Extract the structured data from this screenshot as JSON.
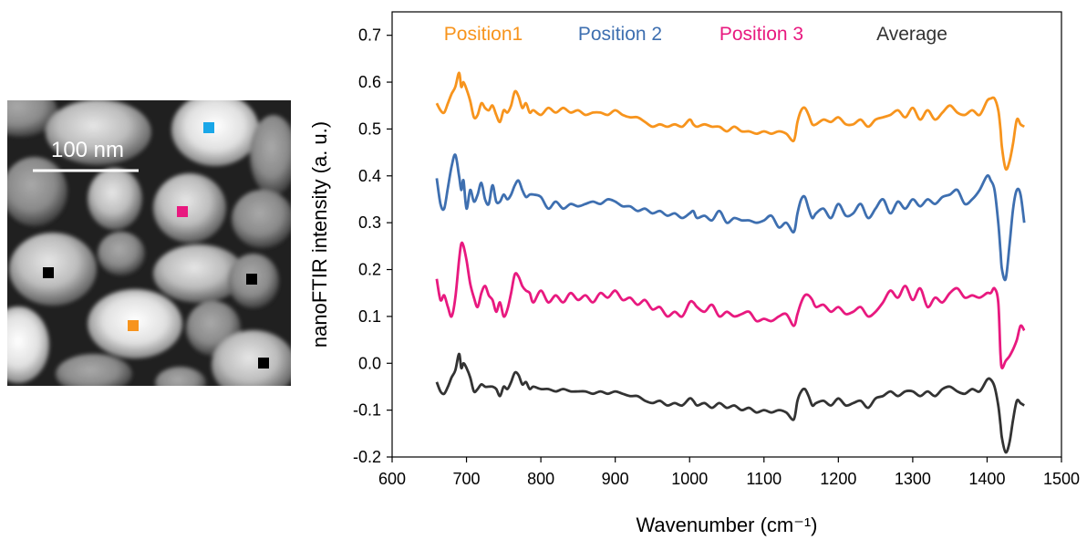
{
  "afm_image": {
    "scale_bar_label": "100 nm",
    "markers": [
      {
        "name": "marker-position-2",
        "color": "#1aa7e8"
      },
      {
        "name": "marker-position-3",
        "color": "#e8197f"
      },
      {
        "name": "marker-position-1",
        "color": "#f7941d"
      },
      {
        "name": "marker-average-1",
        "color": "#000000"
      },
      {
        "name": "marker-average-2",
        "color": "#000000"
      },
      {
        "name": "marker-average-3",
        "color": "#000000"
      }
    ]
  },
  "chart_data": {
    "type": "line",
    "xlabel": "Wavenumber (cm⁻¹)",
    "ylabel": "nanoFTIR intensity (a. u.)",
    "xlim": [
      600,
      1500
    ],
    "ylim": [
      -0.2,
      0.75
    ],
    "xticks": [
      600,
      700,
      800,
      900,
      1000,
      1100,
      1200,
      1300,
      1400,
      1500
    ],
    "xtick_labels": [
      "600",
      "700",
      "800",
      "900",
      "1000",
      "1100",
      "1200",
      "1300",
      "1400",
      "1500"
    ],
    "yticks": [
      -0.2,
      -0.1,
      0.0,
      0.1,
      0.2,
      0.3,
      0.4,
      0.5,
      0.6,
      0.7
    ],
    "ytick_labels": [
      "-0.2",
      "-0.1",
      "0.0",
      "0.1",
      "0.2",
      "0.3",
      "0.4",
      "0.5",
      "0.6",
      "0.7"
    ],
    "grid": false,
    "legend": "top inline",
    "x": [
      660,
      665,
      670,
      675,
      680,
      685,
      690,
      693,
      696,
      700,
      705,
      710,
      715,
      720,
      725,
      730,
      735,
      740,
      745,
      750,
      755,
      760,
      765,
      770,
      775,
      780,
      785,
      790,
      800,
      810,
      820,
      830,
      840,
      850,
      860,
      870,
      880,
      890,
      900,
      910,
      920,
      930,
      940,
      950,
      960,
      970,
      980,
      990,
      1000,
      1005,
      1010,
      1020,
      1030,
      1040,
      1050,
      1060,
      1070,
      1080,
      1090,
      1100,
      1110,
      1120,
      1130,
      1140,
      1145,
      1150,
      1155,
      1160,
      1165,
      1170,
      1180,
      1190,
      1200,
      1210,
      1220,
      1230,
      1240,
      1250,
      1260,
      1270,
      1280,
      1290,
      1300,
      1310,
      1320,
      1330,
      1340,
      1350,
      1360,
      1370,
      1380,
      1390,
      1400,
      1405,
      1410,
      1415,
      1418,
      1420,
      1425,
      1430,
      1435,
      1440,
      1445,
      1450
    ],
    "series": [
      {
        "name": "Position1",
        "color": "#f7941d",
        "values": [
          0.555,
          0.54,
          0.535,
          0.555,
          0.575,
          0.59,
          0.62,
          0.59,
          0.6,
          0.585,
          0.56,
          0.525,
          0.53,
          0.555,
          0.545,
          0.54,
          0.55,
          0.53,
          0.515,
          0.54,
          0.535,
          0.55,
          0.58,
          0.57,
          0.545,
          0.555,
          0.535,
          0.54,
          0.53,
          0.545,
          0.535,
          0.545,
          0.535,
          0.54,
          0.53,
          0.535,
          0.535,
          0.53,
          0.54,
          0.53,
          0.525,
          0.525,
          0.515,
          0.505,
          0.51,
          0.505,
          0.51,
          0.505,
          0.52,
          0.51,
          0.505,
          0.51,
          0.505,
          0.505,
          0.495,
          0.505,
          0.495,
          0.495,
          0.49,
          0.495,
          0.49,
          0.495,
          0.49,
          0.475,
          0.515,
          0.54,
          0.545,
          0.53,
          0.51,
          0.51,
          0.52,
          0.515,
          0.525,
          0.51,
          0.51,
          0.52,
          0.505,
          0.52,
          0.525,
          0.53,
          0.54,
          0.525,
          0.545,
          0.52,
          0.54,
          0.52,
          0.535,
          0.55,
          0.535,
          0.53,
          0.54,
          0.53,
          0.56,
          0.565,
          0.565,
          0.54,
          0.5,
          0.46,
          0.415,
          0.43,
          0.47,
          0.52,
          0.51,
          0.505
        ]
      },
      {
        "name": "Position 2",
        "color": "#3e6fb0",
        "values": [
          0.395,
          0.34,
          0.33,
          0.375,
          0.42,
          0.445,
          0.4,
          0.37,
          0.39,
          0.33,
          0.37,
          0.345,
          0.36,
          0.385,
          0.35,
          0.34,
          0.38,
          0.345,
          0.345,
          0.36,
          0.35,
          0.36,
          0.38,
          0.39,
          0.37,
          0.355,
          0.36,
          0.36,
          0.355,
          0.33,
          0.345,
          0.33,
          0.34,
          0.335,
          0.34,
          0.345,
          0.34,
          0.35,
          0.345,
          0.335,
          0.335,
          0.325,
          0.33,
          0.32,
          0.325,
          0.315,
          0.32,
          0.31,
          0.32,
          0.325,
          0.31,
          0.315,
          0.305,
          0.325,
          0.3,
          0.31,
          0.305,
          0.305,
          0.3,
          0.305,
          0.315,
          0.29,
          0.3,
          0.28,
          0.32,
          0.35,
          0.355,
          0.33,
          0.31,
          0.32,
          0.33,
          0.31,
          0.34,
          0.315,
          0.32,
          0.34,
          0.31,
          0.33,
          0.35,
          0.32,
          0.345,
          0.33,
          0.35,
          0.335,
          0.35,
          0.34,
          0.355,
          0.36,
          0.37,
          0.34,
          0.35,
          0.37,
          0.4,
          0.39,
          0.37,
          0.3,
          0.24,
          0.2,
          0.18,
          0.25,
          0.33,
          0.37,
          0.36,
          0.3
        ]
      },
      {
        "name": "Position 3",
        "color": "#e8197f",
        "values": [
          0.18,
          0.135,
          0.145,
          0.12,
          0.1,
          0.14,
          0.22,
          0.255,
          0.25,
          0.22,
          0.17,
          0.14,
          0.12,
          0.15,
          0.165,
          0.145,
          0.135,
          0.11,
          0.13,
          0.1,
          0.115,
          0.15,
          0.19,
          0.185,
          0.165,
          0.155,
          0.15,
          0.13,
          0.155,
          0.13,
          0.145,
          0.13,
          0.15,
          0.135,
          0.145,
          0.13,
          0.15,
          0.14,
          0.155,
          0.135,
          0.14,
          0.125,
          0.135,
          0.115,
          0.12,
          0.1,
          0.11,
          0.1,
          0.13,
          0.13,
          0.12,
          0.11,
          0.125,
          0.1,
          0.11,
          0.1,
          0.105,
          0.11,
          0.09,
          0.095,
          0.09,
          0.1,
          0.105,
          0.08,
          0.105,
          0.13,
          0.145,
          0.145,
          0.135,
          0.12,
          0.125,
          0.11,
          0.12,
          0.105,
          0.11,
          0.12,
          0.1,
          0.11,
          0.13,
          0.155,
          0.14,
          0.165,
          0.135,
          0.16,
          0.12,
          0.14,
          0.13,
          0.15,
          0.16,
          0.14,
          0.145,
          0.14,
          0.15,
          0.15,
          0.16,
          0.13,
          0.02,
          -0.01,
          0.005,
          0.015,
          0.03,
          0.05,
          0.08,
          0.07
        ]
      },
      {
        "name": "Average",
        "color": "#333333",
        "values": [
          -0.04,
          -0.06,
          -0.065,
          -0.05,
          -0.03,
          -0.015,
          0.02,
          -0.01,
          0.0,
          -0.01,
          -0.03,
          -0.06,
          -0.055,
          -0.045,
          -0.05,
          -0.05,
          -0.05,
          -0.055,
          -0.07,
          -0.05,
          -0.055,
          -0.04,
          -0.02,
          -0.025,
          -0.045,
          -0.04,
          -0.055,
          -0.05,
          -0.055,
          -0.055,
          -0.06,
          -0.055,
          -0.06,
          -0.06,
          -0.06,
          -0.065,
          -0.06,
          -0.065,
          -0.06,
          -0.065,
          -0.07,
          -0.07,
          -0.08,
          -0.085,
          -0.08,
          -0.09,
          -0.085,
          -0.09,
          -0.075,
          -0.08,
          -0.09,
          -0.085,
          -0.095,
          -0.085,
          -0.095,
          -0.09,
          -0.1,
          -0.095,
          -0.105,
          -0.1,
          -0.105,
          -0.1,
          -0.105,
          -0.12,
          -0.08,
          -0.06,
          -0.055,
          -0.07,
          -0.09,
          -0.085,
          -0.08,
          -0.09,
          -0.075,
          -0.09,
          -0.085,
          -0.08,
          -0.095,
          -0.075,
          -0.07,
          -0.06,
          -0.07,
          -0.06,
          -0.06,
          -0.07,
          -0.06,
          -0.07,
          -0.055,
          -0.05,
          -0.06,
          -0.065,
          -0.055,
          -0.06,
          -0.035,
          -0.035,
          -0.05,
          -0.09,
          -0.13,
          -0.16,
          -0.19,
          -0.17,
          -0.12,
          -0.08,
          -0.085,
          -0.09
        ]
      }
    ]
  }
}
